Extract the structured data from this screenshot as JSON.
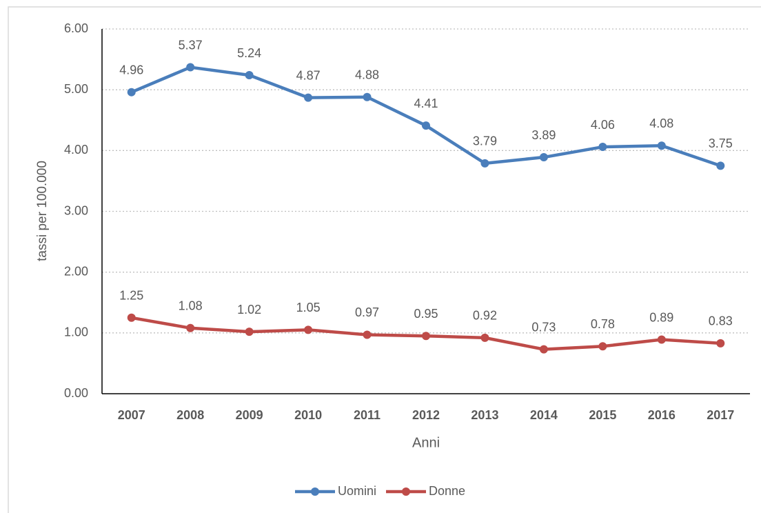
{
  "chart_data": {
    "type": "line",
    "x_label": "Anni",
    "y_label": "tassi per 100.000",
    "categories": [
      "2007",
      "2008",
      "2009",
      "2010",
      "2011",
      "2012",
      "2013",
      "2014",
      "2015",
      "2016",
      "2017"
    ],
    "series": [
      {
        "name": "Uomini",
        "color": "#4a7ebb",
        "values": [
          4.96,
          5.37,
          5.24,
          4.87,
          4.88,
          4.41,
          3.79,
          3.89,
          4.06,
          4.08,
          3.75
        ]
      },
      {
        "name": "Donne",
        "color": "#be4b48",
        "values": [
          1.25,
          1.08,
          1.02,
          1.05,
          0.97,
          0.95,
          0.92,
          0.73,
          0.78,
          0.89,
          0.83
        ]
      }
    ],
    "ylim": [
      0,
      6
    ],
    "yticks": [
      {
        "value": 0,
        "label": "0.00"
      },
      {
        "value": 1,
        "label": "1.00"
      },
      {
        "value": 2,
        "label": "2.00"
      },
      {
        "value": 3,
        "label": "3.00"
      },
      {
        "value": 4,
        "label": "4.00"
      },
      {
        "value": 5,
        "label": "5.00"
      },
      {
        "value": 6,
        "label": "6.00"
      }
    ],
    "grid": true,
    "legend": "bottom"
  }
}
